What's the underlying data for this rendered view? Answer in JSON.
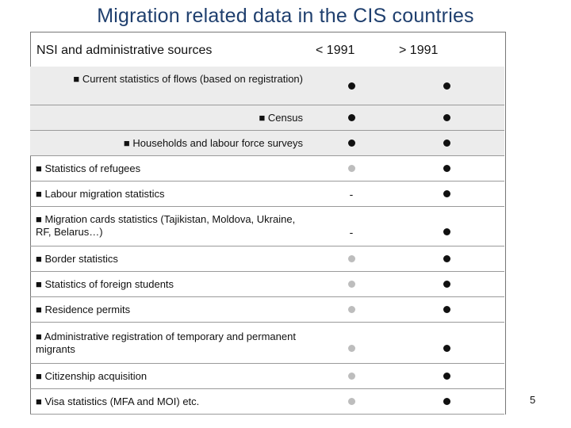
{
  "title": "Migration related  data in the CIS countries",
  "header": {
    "source_label": "NSI and administrative sources",
    "col1": "< 1991",
    "col2": "> 1991"
  },
  "rows": [
    {
      "label": "■ Current statistics of flows (based on registration)",
      "before": "dot",
      "after": "dot"
    },
    {
      "label": "■ Census",
      "before": "dot",
      "after": "dot"
    },
    {
      "label": "■ Households and labour force surveys",
      "before": "dot",
      "after": "dot"
    },
    {
      "label": "■ Statistics of refugees",
      "before": "light-dot",
      "after": "dot"
    },
    {
      "label": "■ Labour migration statistics",
      "before": "-",
      "after": "dot"
    },
    {
      "label": "■ Migration cards statistics (Tajikistan, Moldova, Ukraine, RF, Belarus…)",
      "before": "-",
      "after": "dot"
    },
    {
      "label": "■ Border statistics",
      "before": "light-dot",
      "after": "dot"
    },
    {
      "label": "■ Statistics of foreign students",
      "before": "light-dot",
      "after": "dot"
    },
    {
      "label": "■ Residence  permits",
      "before": "light-dot",
      "after": "dot"
    },
    {
      "label": "■ Administrative registration of temporary and permanent  migrants",
      "before": "light-dot",
      "after": "dot"
    },
    {
      "label": "■ Citizenship acquisition",
      "before": "light-dot",
      "after": "dot"
    },
    {
      "label": "■ Visa statistics (MFA and MOI) etc.",
      "before": "light-dot",
      "after": "dot"
    }
  ],
  "page_number": "5"
}
